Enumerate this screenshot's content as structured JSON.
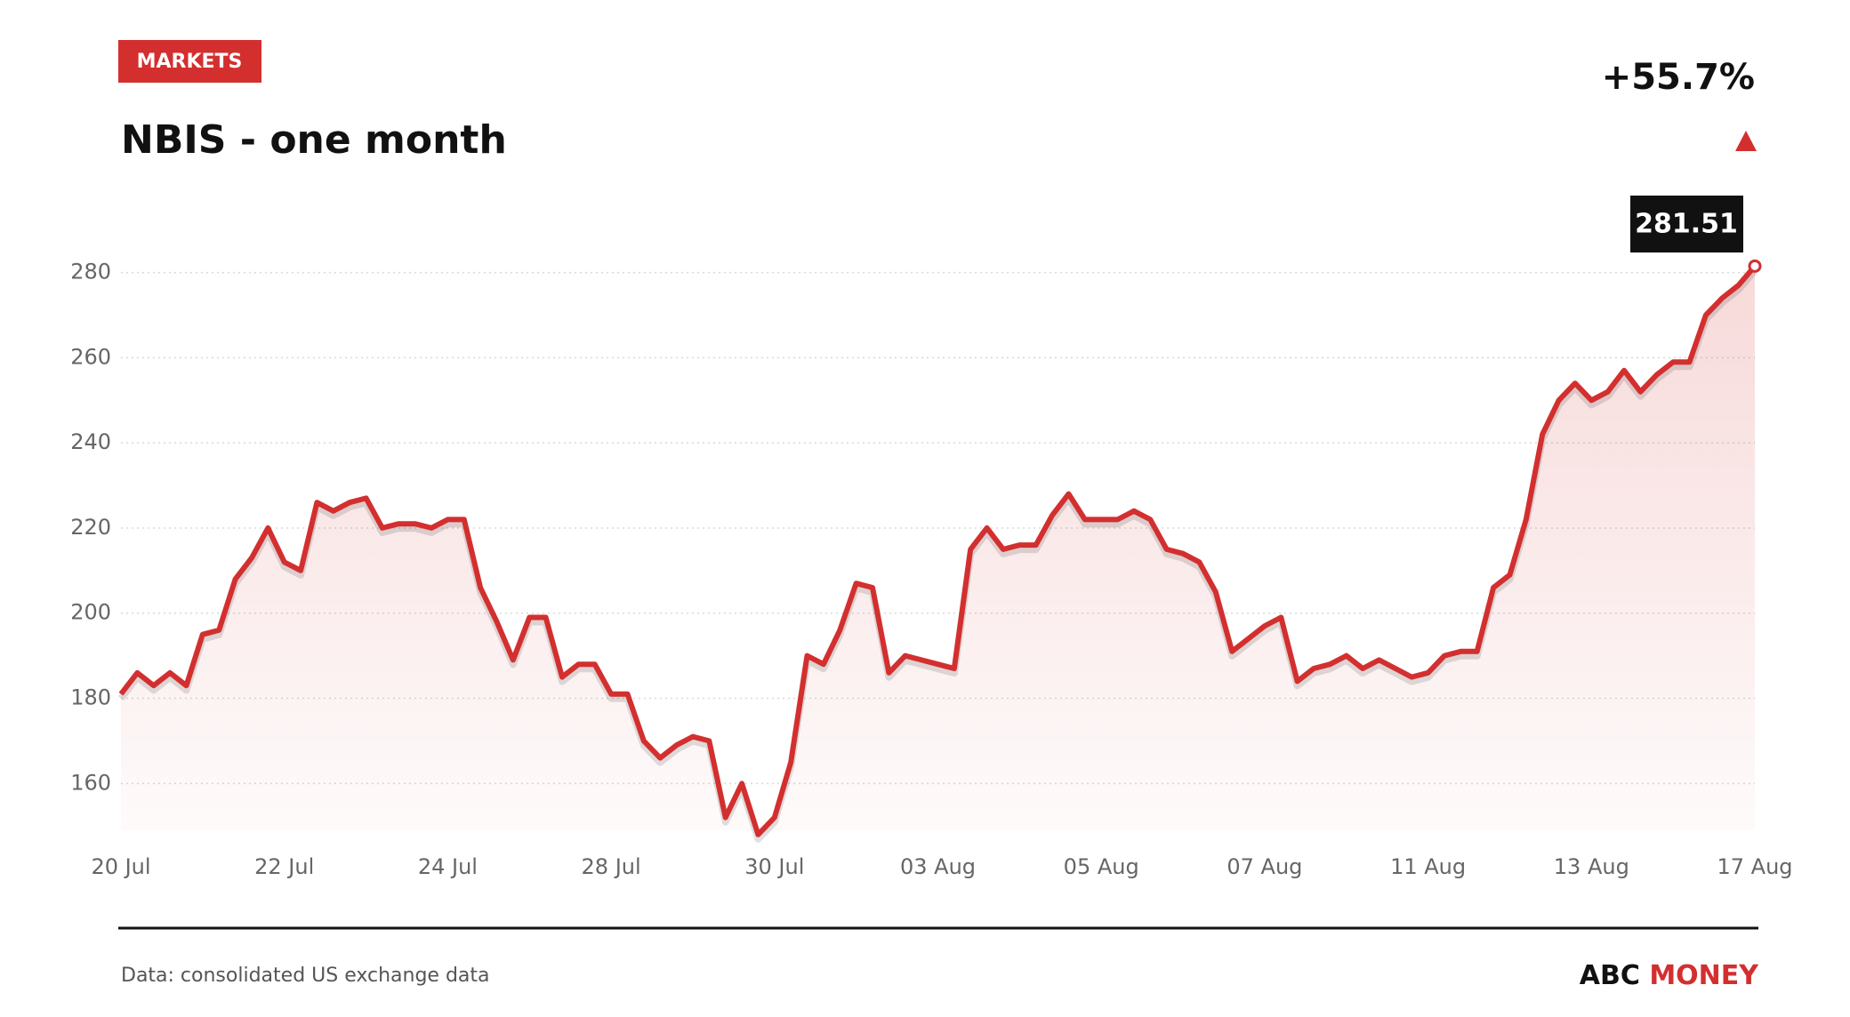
{
  "tag": "MARKETS",
  "change": "+55.7%",
  "source": "Data: consolidated US exchange data",
  "brand": {
    "first": "ABC",
    "second": "MONEY"
  },
  "chart_data": {
    "type": "line",
    "title": "NBIS - one month",
    "color": "#d32f2f",
    "categories": [
      "20 Jul",
      null,
      null,
      null,
      null,
      null,
      null,
      null,
      null,
      null,
      "22 Jul",
      null,
      null,
      null,
      null,
      null,
      null,
      null,
      null,
      null,
      "24 Jul",
      null,
      null,
      null,
      null,
      null,
      null,
      null,
      null,
      null,
      "28 Jul",
      null,
      null,
      null,
      null,
      null,
      null,
      null,
      null,
      null,
      "30 Jul",
      null,
      null,
      null,
      null,
      null,
      null,
      null,
      null,
      null,
      "03 Aug",
      null,
      null,
      null,
      null,
      null,
      null,
      null,
      null,
      null,
      "05 Aug",
      null,
      null,
      null,
      null,
      null,
      null,
      null,
      null,
      null,
      "07 Aug",
      null,
      null,
      null,
      null,
      null,
      null,
      null,
      null,
      null,
      "11 Aug",
      null,
      null,
      null,
      null,
      null,
      null,
      null,
      null,
      null,
      "13 Aug",
      null,
      null,
      null,
      null,
      null,
      null,
      null,
      null,
      null,
      "17 Aug"
    ],
    "values": [
      181,
      186,
      183,
      186,
      183,
      195,
      196,
      208,
      213,
      220,
      212,
      210,
      226,
      224,
      226,
      227,
      220,
      221,
      221,
      220,
      222,
      222,
      206,
      198,
      189,
      199,
      199,
      185,
      188,
      188,
      181,
      181,
      170,
      166,
      169,
      171,
      170,
      152,
      160,
      148,
      152,
      165,
      190,
      188,
      196,
      207,
      206,
      186,
      190,
      189,
      188,
      187,
      215,
      220,
      215,
      216,
      216,
      223,
      228,
      222,
      222,
      222,
      224,
      222,
      215,
      214,
      212,
      205,
      191,
      194,
      197,
      199,
      184,
      187,
      188,
      190,
      187,
      189,
      187,
      185,
      186,
      190,
      191,
      191,
      206,
      209,
      222,
      242,
      250,
      254,
      250,
      252,
      257,
      252,
      256,
      259,
      259,
      270,
      274,
      277,
      281.51
    ],
    "ylim": [
      149,
      282
    ],
    "yticks": [
      160,
      180,
      200,
      220,
      240,
      260,
      280
    ],
    "grid": true
  }
}
